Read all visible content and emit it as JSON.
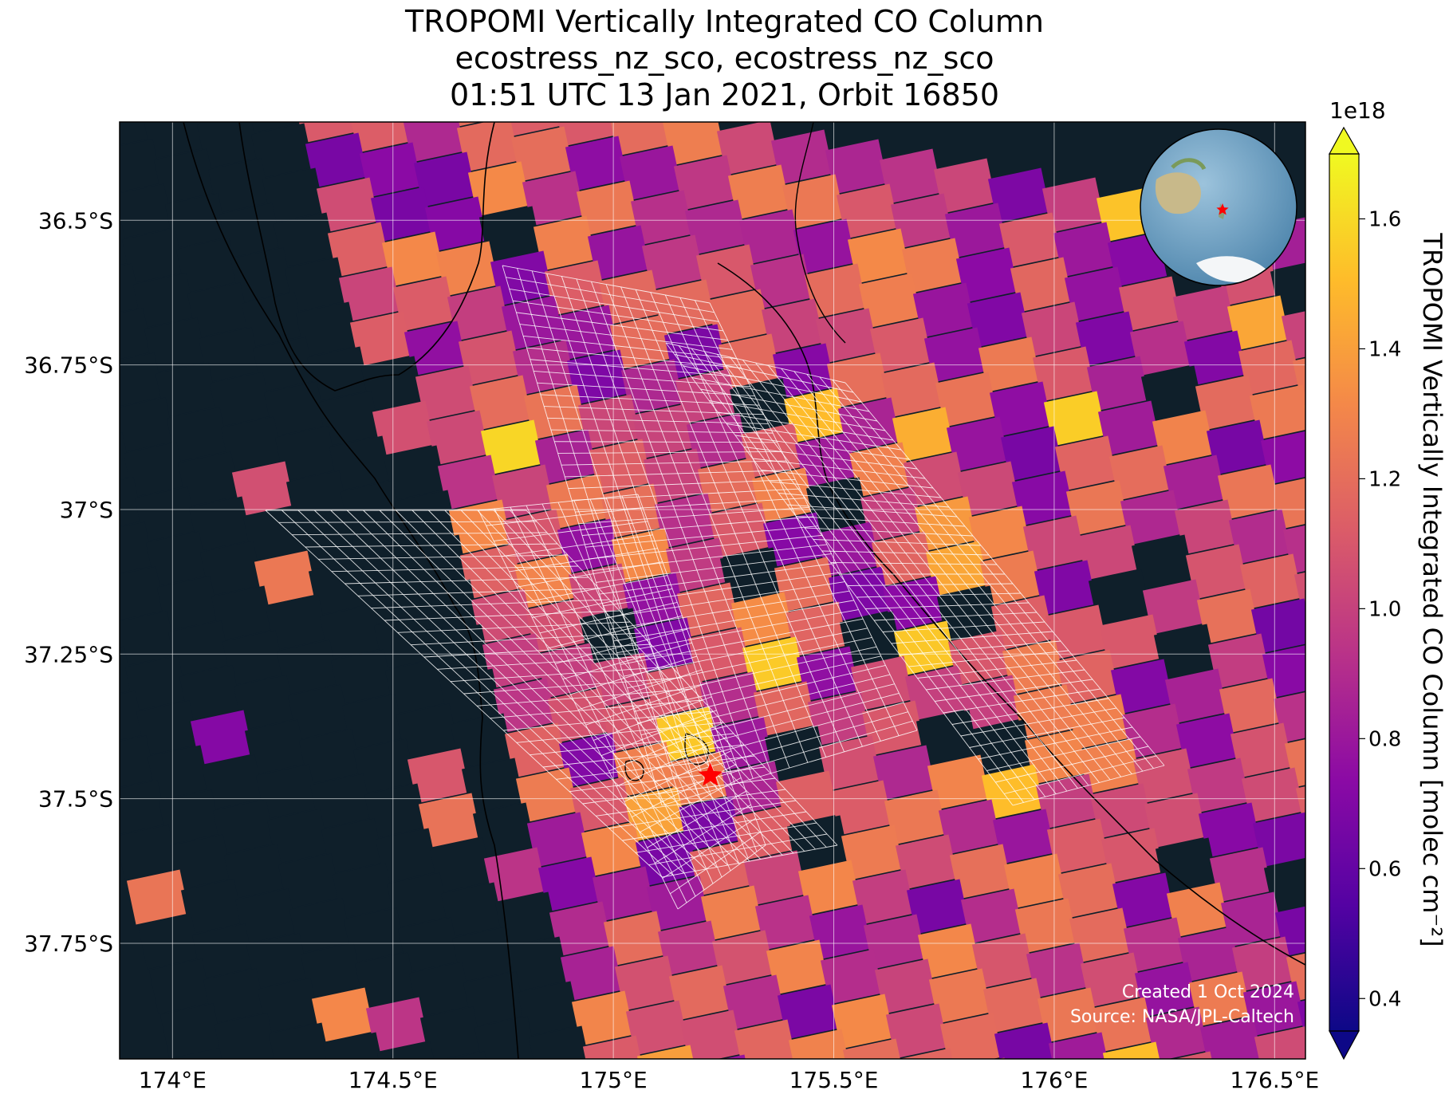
{
  "title": {
    "line1": "TROPOMI Vertically Integrated CO Column",
    "line2": "ecostress_nz_sco, ecostress_nz_sco",
    "line3": "01:51 UTC 13 Jan 2021, Orbit 16850"
  },
  "map": {
    "extent": {
      "lon": [
        173.88,
        176.57
      ],
      "lat": [
        -37.95,
        -36.33
      ]
    },
    "lon_ticks": [
      174.0,
      174.5,
      175.0,
      175.5,
      176.0,
      176.5
    ],
    "lon_tick_labels": [
      "174°E",
      "174.5°E",
      "175°E",
      "175.5°E",
      "176°E",
      "176.5°E"
    ],
    "lat_ticks": [
      -36.5,
      -36.75,
      -37.0,
      -37.25,
      -37.5,
      -37.75
    ],
    "lat_tick_labels": [
      "36.5°S",
      "36.75°S",
      "37°S",
      "37.25°S",
      "37.5°S",
      "37.75°S"
    ],
    "grid": true,
    "site_marker": {
      "lon": 175.22,
      "lat": -37.46,
      "color": "#ff0000",
      "shape": "star"
    },
    "overlay_color": "#ffffff",
    "background_color": "#0f1f2a"
  },
  "colorbar": {
    "label": "TROPOMI Vertically Integrated CO Column [molec cm⁻²]",
    "exponent_label": "1e18",
    "ticks": [
      0.4,
      0.6,
      0.8,
      1.0,
      1.2,
      1.4,
      1.6
    ],
    "tick_labels": [
      "0.4",
      "0.6",
      "0.8",
      "1.0",
      "1.2",
      "1.4",
      "1.6"
    ],
    "range": [
      0.35,
      1.7
    ],
    "colormap": "plasma",
    "extend": "both"
  },
  "credits": {
    "created": "Created 1 Oct 2024",
    "source": "Source: NASA/JPL-Caltech"
  },
  "locator_globe": {
    "marker_color": "#ff0000",
    "marker_shape": "star"
  }
}
